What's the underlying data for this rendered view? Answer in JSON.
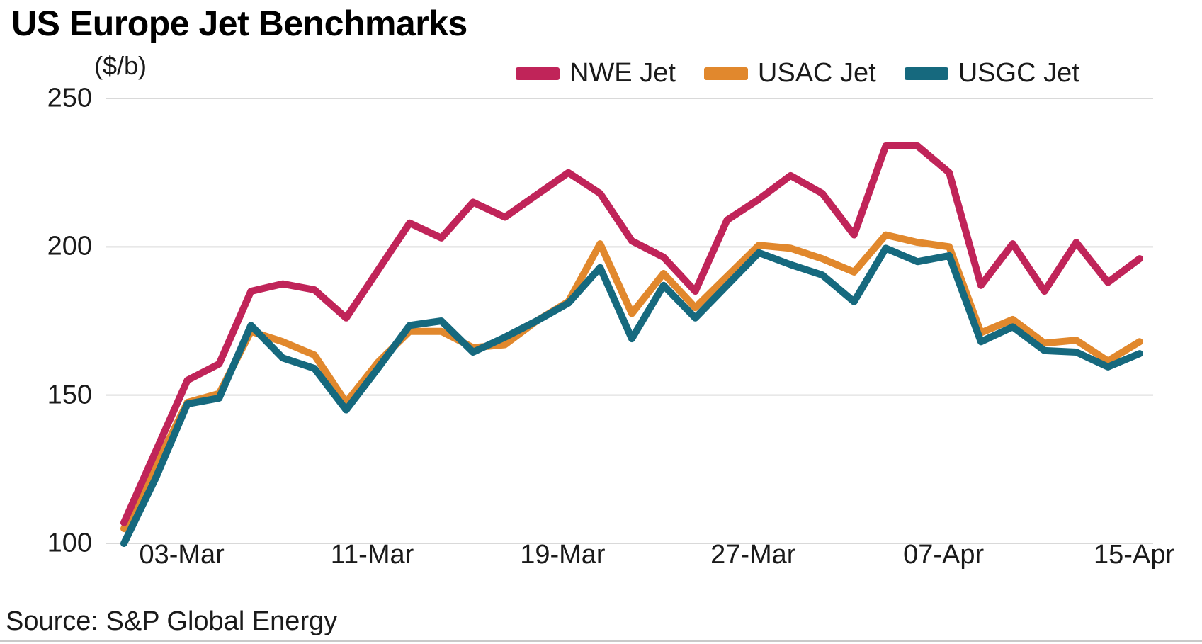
{
  "title": "US Europe Jet Benchmarks",
  "unit_label": "($/b)",
  "source_line": "Source: S&P Global Energy",
  "colors": {
    "nwe": "#C02459",
    "usac": "#E1882D",
    "usgc": "#16697E",
    "gridline": "#d9d9d9",
    "text": "#1a1a1a",
    "bottom_rule": "#c9c9c9"
  },
  "legend": [
    {
      "label": "NWE Jet",
      "color": "#C02459"
    },
    {
      "label": "USAC Jet",
      "color": "#E1882D"
    },
    {
      "label": "USGC Jet",
      "color": "#16697E"
    }
  ],
  "chart_data": {
    "type": "line",
    "title": "US Europe Jet Benchmarks",
    "ylabel": "($/b)",
    "ylim": [
      100,
      250
    ],
    "y_ticks": [
      100,
      150,
      200,
      250
    ],
    "grid": "horizontal",
    "legend_position": "top-right",
    "n_points": 33,
    "x_tick_labels": [
      {
        "label": "03-Mar",
        "index": 2
      },
      {
        "label": "11-Mar",
        "index": 8
      },
      {
        "label": "19-Mar",
        "index": 14
      },
      {
        "label": "27-Mar",
        "index": 20
      },
      {
        "label": "07-Apr",
        "index": 26
      },
      {
        "label": "15-Apr",
        "index": 32
      }
    ],
    "series": [
      {
        "name": "NWE Jet",
        "color": "#C02459",
        "values": [
          107,
          131,
          155,
          160.5,
          185,
          187.5,
          185.5,
          176,
          192,
          208,
          203,
          215,
          210,
          217.5,
          225,
          218,
          202,
          196.5,
          185,
          209,
          216,
          224,
          218,
          204,
          234,
          234,
          225,
          187,
          201,
          185,
          201.5,
          188,
          196
        ]
      },
      {
        "name": "USAC Jet",
        "color": "#E1882D",
        "values": [
          105,
          126,
          147.5,
          150.5,
          171.5,
          168,
          163.5,
          147.5,
          161,
          171.5,
          171.5,
          166,
          167,
          175,
          181.5,
          201,
          177.5,
          191,
          179.5,
          190,
          200.5,
          199.5,
          196,
          191.5,
          204,
          201.5,
          200,
          171,
          175.5,
          167.5,
          168.5,
          161.5,
          168
        ]
      },
      {
        "name": "USGC Jet",
        "color": "#16697E",
        "values": [
          100,
          122,
          147,
          149,
          173.5,
          162.5,
          159,
          145,
          159,
          173.5,
          175,
          164.5,
          169.5,
          175,
          181,
          193,
          169,
          187,
          176,
          187,
          198,
          194,
          190.5,
          181.5,
          199.5,
          195,
          197,
          168,
          173,
          165,
          164.5,
          159.5,
          164
        ]
      }
    ]
  }
}
